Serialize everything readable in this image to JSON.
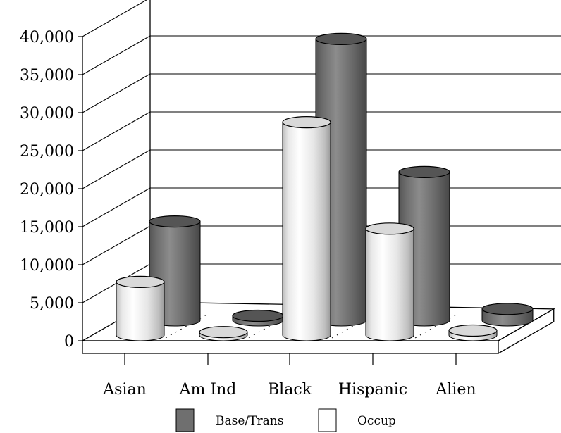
{
  "chart_data": {
    "type": "bar",
    "title": "",
    "xlabel": "",
    "ylabel": "",
    "categories": [
      "Asian",
      "Am Ind",
      "Black",
      "Hispanic",
      "Alien"
    ],
    "series": [
      {
        "name": "Base/Trans",
        "color": "#6f6f6f",
        "values": [
          13000,
          600,
          37000,
          19500,
          1500
        ]
      },
      {
        "name": "Occup",
        "color": "#f4f4f4",
        "values": [
          7000,
          400,
          28000,
          14000,
          600
        ]
      }
    ],
    "yticks": [
      "0",
      "5,000",
      "10,000",
      "15,000",
      "20,000",
      "25,000",
      "30,000",
      "35,000",
      "40,000"
    ],
    "ylim": [
      0,
      40000
    ],
    "grid": true,
    "legend": "bottom",
    "style": "3d-cylinder"
  }
}
